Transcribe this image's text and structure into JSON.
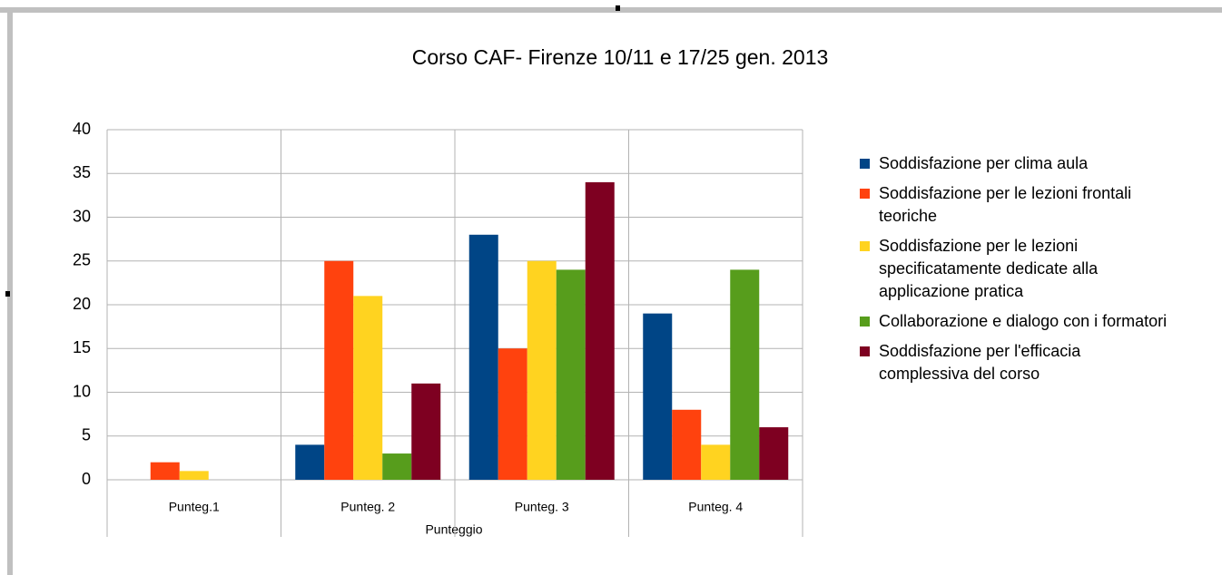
{
  "chart_data": {
    "type": "bar",
    "title": "Corso CAF- Firenze 10/11 e 17/25 gen. 2013",
    "x_label": "Punteggio",
    "categories": [
      "Punteg.1",
      "Punteg. 2",
      "Punteg. 3",
      "Punteg. 4"
    ],
    "series": [
      {
        "name": "Soddisfazione per clima aula",
        "color": "#004586",
        "values": [
          0,
          4,
          28,
          19
        ]
      },
      {
        "name": "Soddisfazione per le lezioni frontali teoriche",
        "color": "#ff420e",
        "values": [
          2,
          25,
          15,
          8
        ]
      },
      {
        "name": "Soddisfazione per le lezioni specificatamente dedicate alla applicazione pratica",
        "color": "#ffd320",
        "values": [
          1,
          21,
          25,
          4
        ]
      },
      {
        "name": "Collaborazione e dialogo con i formatori",
        "color": "#579d1c",
        "values": [
          0,
          3,
          24,
          24
        ]
      },
      {
        "name": "Soddisfazione per l'efficacia complessiva del corso",
        "color": "#7e0021",
        "values": [
          0,
          11,
          34,
          6
        ]
      }
    ],
    "ylim": [
      0,
      40
    ],
    "yticks": [
      0,
      5,
      10,
      15,
      20,
      25,
      30,
      35,
      40
    ],
    "grid": true,
    "legend": "right"
  }
}
